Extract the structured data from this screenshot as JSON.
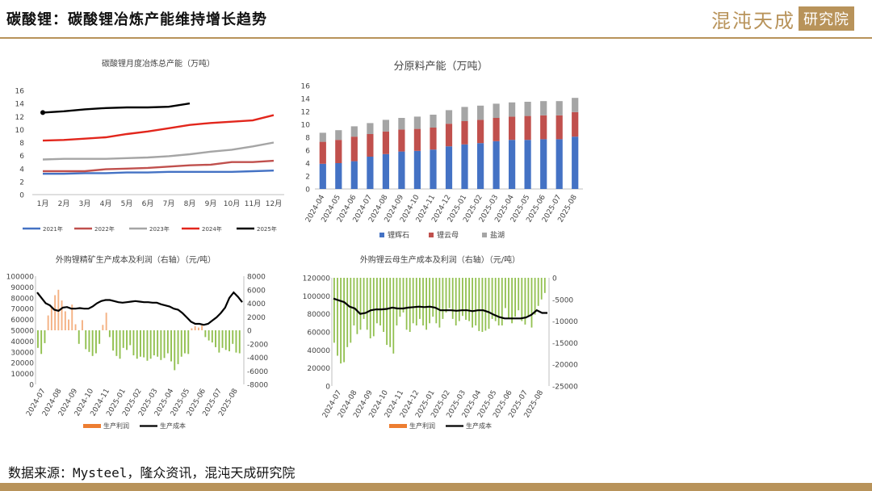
{
  "page": {
    "title": "碳酸锂：碳酸锂冶炼产能维持增长趋势",
    "brand_name": "混沌天成",
    "brand_box": "研究院",
    "source": "数据来源：Mysteel，隆众资讯，混沌天成研究院"
  },
  "colors": {
    "brand_gold": "#b8935a",
    "blue": "#4472c4",
    "red": "#c0504d",
    "gray": "#a5a5a5",
    "line_red": "#e2261c",
    "black": "#000000",
    "orange": "#ed7d31",
    "green": "#92c050",
    "light_blue": "#5b9bd5"
  },
  "chart_data": [
    {
      "id": "monthly",
      "type": "line",
      "title": "碳酸锂月度冶炼总产能（万吨）",
      "categories": [
        "1月",
        "2月",
        "3月",
        "4月",
        "5月",
        "6月",
        "7月",
        "8月",
        "9月",
        "10月",
        "11月",
        "12月"
      ],
      "ylim": [
        0,
        16
      ],
      "yticks": [
        0,
        2,
        4,
        6,
        8,
        10,
        12,
        14,
        16
      ],
      "legend_position": "bottom",
      "series": [
        {
          "name": "2021年",
          "color": "#4472c4",
          "values": [
            3.2,
            3.2,
            3.3,
            3.3,
            3.4,
            3.4,
            3.5,
            3.5,
            3.5,
            3.5,
            3.6,
            3.7
          ]
        },
        {
          "name": "2022年",
          "color": "#c0504d",
          "values": [
            3.6,
            3.6,
            3.6,
            3.9,
            4.0,
            4.1,
            4.3,
            4.5,
            4.6,
            5.0,
            5.0,
            5.2
          ]
        },
        {
          "name": "2023年",
          "color": "#a5a5a5",
          "values": [
            5.4,
            5.5,
            5.5,
            5.5,
            5.6,
            5.7,
            5.9,
            6.2,
            6.6,
            6.9,
            7.4,
            8.0
          ]
        },
        {
          "name": "2024年",
          "color": "#e2261c",
          "values": [
            8.3,
            8.4,
            8.6,
            8.8,
            9.3,
            9.7,
            10.2,
            10.7,
            11.0,
            11.2,
            11.4,
            12.2
          ]
        },
        {
          "name": "2025年",
          "color": "#000000",
          "values": [
            12.6,
            12.8,
            13.1,
            13.3,
            13.4,
            13.4,
            13.5,
            14.0,
            null,
            null,
            null,
            null
          ]
        }
      ]
    },
    {
      "id": "raw_material",
      "type": "bar",
      "stacked": true,
      "title": "分原料产能（万吨）",
      "categories": [
        "2024-04",
        "2024-05",
        "2024-06",
        "2024-07",
        "2024-08",
        "2024-09",
        "2024-10",
        "2024-11",
        "2024-12",
        "2025-01",
        "2025-02",
        "2025-03",
        "2025-04",
        "2025-05",
        "2025-06",
        "2025-07",
        "2025-08"
      ],
      "ylim": [
        0,
        16
      ],
      "yticks": [
        0,
        2,
        4,
        6,
        8,
        10,
        12,
        14,
        16
      ],
      "legend_position": "bottom",
      "series": [
        {
          "name": "锂辉石",
          "color": "#4472c4",
          "values": [
            3.9,
            4.0,
            4.3,
            5.0,
            5.4,
            5.8,
            5.9,
            6.1,
            6.6,
            6.9,
            7.1,
            7.4,
            7.6,
            7.6,
            7.7,
            7.7,
            8.1
          ]
        },
        {
          "name": "锂云母",
          "color": "#c0504d",
          "values": [
            3.4,
            3.6,
            3.8,
            3.5,
            3.5,
            3.4,
            3.4,
            3.4,
            3.5,
            3.6,
            3.6,
            3.6,
            3.6,
            3.7,
            3.7,
            3.7,
            3.8
          ]
        },
        {
          "name": "盐湖",
          "color": "#a5a5a5",
          "values": [
            1.4,
            1.5,
            1.6,
            1.7,
            1.8,
            1.8,
            1.9,
            2.0,
            2.1,
            2.2,
            2.2,
            2.2,
            2.2,
            2.2,
            2.2,
            2.2,
            2.2
          ]
        }
      ]
    },
    {
      "id": "spodumene",
      "type": "bar+line",
      "title": "外购锂精矿生产成本及利润（右轴）（元/吨）",
      "x_ticks": [
        "2024-07",
        "2024-08",
        "2024-09",
        "2024-10",
        "2024-11",
        "2025-01",
        "2025-02",
        "2025-03",
        "2025-04",
        "2025-05",
        "2025-06",
        "2025-07",
        "2025-08"
      ],
      "left_ylim": [
        0,
        100000
      ],
      "left_yticks": [
        0,
        10000,
        20000,
        30000,
        40000,
        50000,
        60000,
        70000,
        80000,
        90000,
        100000
      ],
      "right_ylim": [
        -8000,
        8000
      ],
      "right_yticks": [
        -8000,
        -6000,
        -4000,
        -2000,
        0,
        2000,
        4000,
        6000,
        8000
      ],
      "legend_position": "bottom",
      "series": [
        {
          "name": "生产利润",
          "color": "#ed7d31",
          "axis": "right",
          "values": [
            -2600,
            -3500,
            -1900,
            2200,
            3500,
            5200,
            6000,
            4400,
            2800,
            1600,
            3800,
            900,
            -2000,
            1500,
            -2800,
            -3200,
            -3800,
            -3400,
            -2000,
            800,
            2600,
            -1000,
            -3000,
            -3800,
            -4200,
            -2600,
            -2900,
            -2200,
            -3700,
            -4200,
            -3900,
            -4000,
            -4500,
            -4200,
            -3700,
            -3900,
            -4400,
            -4100,
            -3400,
            -4600,
            -5900,
            -5000,
            -3900,
            -3400,
            -3500,
            300,
            600,
            400,
            700,
            -1000,
            -1500,
            -1800,
            -2500,
            -3300,
            -2600,
            -2900,
            -3100,
            -2000,
            -3300,
            -3400
          ]
        },
        {
          "name": "生产成本",
          "color": "#000000",
          "axis": "left",
          "values": [
            85000,
            80000,
            75000,
            73000,
            69000,
            68000,
            71000,
            71500,
            70000,
            70000,
            70500,
            70000,
            70000,
            72000,
            75000,
            77000,
            78000,
            78000,
            77000,
            76000,
            75500,
            76000,
            76500,
            77000,
            76500,
            76000,
            76000,
            75500,
            75500,
            74000,
            73000,
            72000,
            70000,
            69000,
            66000,
            62000,
            58000,
            56000,
            56000,
            55000,
            56000,
            59000,
            62000,
            66000,
            71000,
            80000,
            85000,
            81000,
            76000
          ]
        }
      ]
    },
    {
      "id": "lepidolite",
      "type": "bar+line",
      "title": "外购锂云母生产成本及利润（右轴）（元/吨）",
      "x_ticks": [
        "2024-07",
        "2024-08",
        "2024-09",
        "2024-10",
        "2024-11",
        "2024-12",
        "2025-01",
        "2025-02",
        "2025-03",
        "2025-04",
        "2025-05",
        "2025-06",
        "2025-07",
        "2025-08"
      ],
      "left_ylim": [
        0,
        120000
      ],
      "left_yticks": [
        0,
        20000,
        40000,
        60000,
        80000,
        100000,
        120000
      ],
      "right_ylim": [
        -25000,
        0
      ],
      "right_yticks": [
        -25000,
        -20000,
        -15000,
        -10000,
        -5000,
        0
      ],
      "legend_position": "bottom",
      "series": [
        {
          "name": "生产利润",
          "color": "#ed7d31",
          "axis": "right",
          "values": [
            -15000,
            -18000,
            -19800,
            -19500,
            -16000,
            -15000,
            -11000,
            -13000,
            -12000,
            -9500,
            -12000,
            -14000,
            -13500,
            -10500,
            -11000,
            -12500,
            -15500,
            -16000,
            -17500,
            -11000,
            -9000,
            -8000,
            -12000,
            -12500,
            -10500,
            -11000,
            -9500,
            -11000,
            -12000,
            -10500,
            -9000,
            -10500,
            -11500,
            -9500,
            -8000,
            -7000,
            -9500,
            -11000,
            -10000,
            -8800,
            -9700,
            -10000,
            -11500,
            -11000,
            -12300,
            -12500,
            -12200,
            -11800,
            -9500,
            -10000,
            -11000,
            -11000,
            -7000,
            -9500,
            -10500,
            -9000,
            -7500,
            -10000,
            -10800,
            -9000,
            -11500,
            -8500,
            -6500,
            -5000,
            -3500
          ]
        },
        {
          "name": "生产成本",
          "color": "#000000",
          "axis": "left",
          "values": [
            97000,
            95000,
            93000,
            88000,
            86000,
            80000,
            81000,
            84000,
            85000,
            85000,
            85500,
            87000,
            86000,
            86000,
            87000,
            87500,
            88000,
            87500,
            88000,
            87000,
            84000,
            84000,
            84000,
            83500,
            84000,
            84000,
            83000,
            84000,
            84000,
            82000,
            79000,
            76500,
            75000,
            75000,
            75000,
            75000,
            76000,
            79000,
            84000,
            81000,
            81000
          ]
        }
      ]
    }
  ]
}
